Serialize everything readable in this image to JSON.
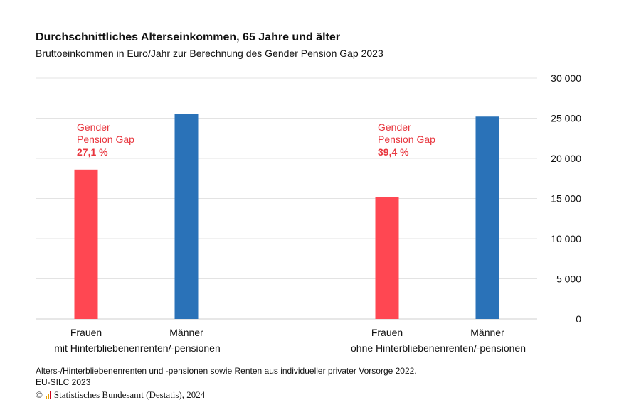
{
  "title": "Durchschnittliches Alterseinkommen, 65 Jahre und älter",
  "subtitle": "Bruttoeinkommen in Euro/Jahr zur Berechnung des Gender Pension Gap 2023",
  "footnote": "Alters-/Hinterbliebenenrenten und -pensionen sowie Renten aus individueller privater Vorsorge 2022.",
  "source_link": "EU-SILC 2023",
  "copyright": {
    "symbol": "©",
    "text": "Statistisches Bundesamt (Destatis), 2024",
    "logo": "destatis-logo-icon"
  },
  "colors": {
    "frauen": "#ff4752",
    "maenner": "#2a72b8",
    "gap_text": "#e8373f",
    "grid": "#e3e3e3"
  },
  "chart_data": {
    "type": "bar",
    "ylim": [
      0,
      30000
    ],
    "yticks": [
      0,
      5000,
      10000,
      15000,
      20000,
      25000,
      30000
    ],
    "ytick_labels": [
      "0",
      "5 000",
      "10 000",
      "15 000",
      "20 000",
      "25 000",
      "30 000"
    ],
    "groups": [
      {
        "label": "mit Hinterbliebenenrenten/-pensionen",
        "bars": [
          {
            "category": "Frauen",
            "value": 18600
          },
          {
            "category": "Männer",
            "value": 25500
          }
        ],
        "annotation": {
          "line1": "Gender",
          "line2": "Pension Gap",
          "value": "27,1 %"
        }
      },
      {
        "label": "ohne Hinterbliebenenrenten/-pensionen",
        "bars": [
          {
            "category": "Frauen",
            "value": 15200
          },
          {
            "category": "Männer",
            "value": 25200
          }
        ],
        "annotation": {
          "line1": "Gender",
          "line2": "Pension Gap",
          "value": "39,4 %"
        }
      }
    ]
  }
}
